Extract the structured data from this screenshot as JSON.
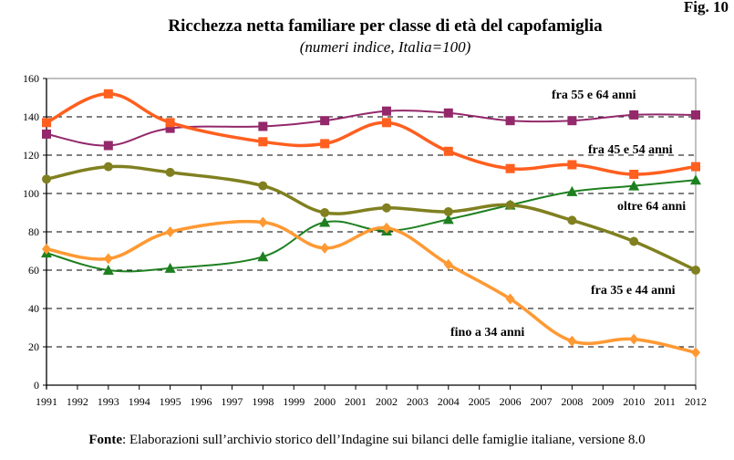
{
  "figure": {
    "number_label": "Fig. 10",
    "title": "Ricchezza netta familiare per classe di età del capofamiglia",
    "subtitle": "(numeri indice, Italia=100)",
    "source_label": "Fonte",
    "source_text": ": Elaborazioni sull’archivio storico dell’Indagine sui bilanci delle famiglie italiane, versione 8.0"
  },
  "chart_data": {
    "type": "line",
    "title": "Ricchezza netta familiare per classe di età del capofamiglia",
    "subtitle": "(numeri indice, Italia=100)",
    "xlabel": "",
    "ylabel": "",
    "x_ticks": [
      "1991",
      "1992",
      "1993",
      "1994",
      "1995",
      "1996",
      "1997",
      "1998",
      "1999",
      "2000",
      "2001",
      "2002",
      "2003",
      "2004",
      "2005",
      "2006",
      "2007",
      "2008",
      "2009",
      "2010",
      "2011",
      "2012"
    ],
    "xlim": [
      1991,
      2012
    ],
    "ylim": [
      0,
      160
    ],
    "y_ticks": [
      0,
      20,
      40,
      60,
      80,
      100,
      120,
      140,
      160
    ],
    "grid": "horizontal dashed",
    "legend": "inline labels",
    "x": [
      1991,
      1993,
      1995,
      1998,
      2000,
      2002,
      2004,
      2006,
      2008,
      2010,
      2012
    ],
    "series": [
      {
        "name": "fra 55 e 64 anni",
        "color": "#93286A",
        "marker": "square",
        "values": [
          131,
          125,
          134,
          135,
          138,
          143,
          142,
          138,
          138,
          141,
          141
        ]
      },
      {
        "name": "fra 45 e 54 anni",
        "color": "#FF5F1F",
        "marker": "square",
        "values": [
          137,
          152,
          137,
          127,
          126,
          137,
          122,
          113,
          115,
          110,
          114
        ]
      },
      {
        "name": "oltre 64 anni",
        "color": "#1E8020",
        "marker": "triangle",
        "values": [
          69,
          60,
          61,
          67,
          85,
          80.5,
          86.5,
          94,
          101,
          104,
          107
        ]
      },
      {
        "name": "fra 35 e 44 anni",
        "color": "#808020",
        "marker": "circle",
        "values": [
          107.5,
          114,
          111,
          104,
          90,
          92.5,
          90.5,
          94,
          86,
          75,
          60
        ]
      },
      {
        "name": "fino a 34 anni",
        "color": "#FF9933",
        "marker": "diamond",
        "values": [
          71,
          66,
          80,
          85,
          71.5,
          82,
          63,
          45,
          23,
          24,
          17
        ]
      }
    ]
  }
}
